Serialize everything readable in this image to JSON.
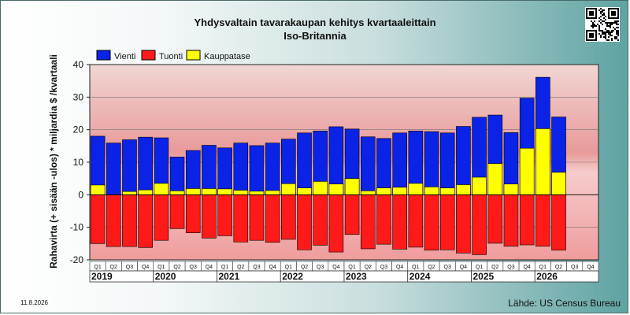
{
  "chart_data": {
    "type": "bar",
    "title": "Yhdysvaltain tavarakaupan kehitys kvartaaleittain",
    "subtitle": "Iso-Britannia",
    "ylabel": "Rahavirta (+ sisään -ulos)  * miljardia $ /kvartaali",
    "xlabel": "",
    "ylim": [
      -20,
      40
    ],
    "yticks": [
      40,
      30,
      20,
      10,
      0,
      -10,
      -20
    ],
    "grid": true,
    "legend_position": "top-left",
    "categories": [
      "Q1",
      "Q2",
      "Q3",
      "Q4",
      "Q1",
      "Q2",
      "Q3",
      "Q4",
      "Q1",
      "Q2",
      "Q3",
      "Q4",
      "Q1",
      "Q2",
      "Q3",
      "Q4",
      "Q1",
      "Q2",
      "Q3",
      "Q4",
      "Q1",
      "Q2",
      "Q3",
      "Q4",
      "Q1",
      "Q2",
      "Q3",
      "Q4",
      "Q1",
      "Q2",
      "Q3",
      "Q4"
    ],
    "years": [
      "2019",
      "2020",
      "2021",
      "2022",
      "2023",
      "2024",
      "2025",
      "2026"
    ],
    "series": [
      {
        "name": "Vienti",
        "color": "#0a23e6",
        "values": [
          18.0,
          15.9,
          16.9,
          17.7,
          17.5,
          11.6,
          13.6,
          15.2,
          14.4,
          15.9,
          15.1,
          15.9,
          17.1,
          19.0,
          19.6,
          20.9,
          20.2,
          17.8,
          17.3,
          19.0,
          19.6,
          19.4,
          19.0,
          21.0,
          23.8,
          24.5,
          19.1,
          29.7,
          36.1,
          23.9,
          null,
          null
        ]
      },
      {
        "name": "Tuonti",
        "color": "#ff1a1a",
        "values": [
          -15.0,
          -15.9,
          -15.9,
          -16.2,
          -14.0,
          -10.4,
          -11.7,
          -13.3,
          -12.6,
          -14.5,
          -14.0,
          -14.6,
          -13.7,
          -16.9,
          -15.5,
          -17.6,
          -12.2,
          -16.6,
          -15.2,
          -16.7,
          -16.1,
          -17.0,
          -16.9,
          -17.9,
          -18.4,
          -14.9,
          -15.8,
          -15.4,
          -15.8,
          -17.0,
          null,
          null
        ]
      },
      {
        "name": "Kauppatase",
        "color": "#ffff00",
        "values": [
          3.0,
          0.0,
          1.0,
          1.5,
          3.5,
          1.2,
          1.9,
          1.9,
          1.8,
          1.4,
          1.1,
          1.3,
          3.4,
          2.1,
          4.1,
          3.3,
          5.0,
          1.2,
          2.1,
          2.3,
          3.5,
          2.4,
          2.1,
          3.1,
          5.4,
          9.6,
          3.3,
          14.3,
          20.3,
          6.9,
          null,
          null
        ]
      }
    ]
  },
  "footer": {
    "source": "Lähde: US Census Bureau",
    "date": "11.8.2026"
  },
  "qr_code_alt": "QR code"
}
